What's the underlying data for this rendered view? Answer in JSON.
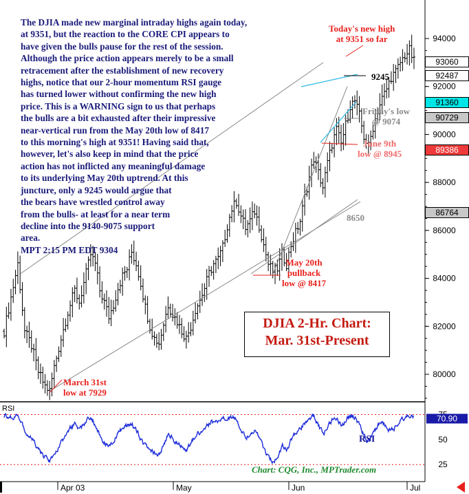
{
  "commentary": "The DJIA made new marginal intraday highs again today,\nat 9351, but the reaction to the CORE CPI appears to\nhave given the bulls pause for the rest of the session.\nAlthough the price action appears merely to be a small\nretracement after the establishment of new recovery\nhighs, notice that our 2-hour momentum RSI gauge\nhas turned lower without confirming the new high\nprice. This is a WARNING sign to us that perhaps\nthe bulls are a bit exhausted after their impressive\nnear-vertical run from the May 20th low of 8417\nto this morning's high at 9351!  Having said that,\nhowever, let's also keep in mind that the price\naction has not inflicted any meaningful damage\nto its underlying May 20th uptrend. At this\njuncture, only a 9245 would argue that\nthe bears have wrestled control away\nfrom the bulls- at least for a near term\ndecline into the 9140-9075 support\narea.\nMPT 2:15 PM EDT 9304",
  "annotations": {
    "today_high": "Today's new high\nat 9351 so far",
    "level_9245": "9245",
    "fridays_low": "Friday's low\n@ 9074",
    "june9_low": "June 9th\nlow @ 8945",
    "level_8650": "8650",
    "may20_low": "May 20th\npullback\nlow @ 8417",
    "march31_low": "March 31st\nlow at 7929"
  },
  "title": "DJIA 2-Hr. Chart:\nMar. 31st-Present",
  "credit": "Chart: CQG, Inc., MPTrader.com",
  "last_values": [
    {
      "value": "93060",
      "bg": "#ffffff",
      "fg": "#000000",
      "price": 9306
    },
    {
      "value": "92487",
      "bg": "#ffffff",
      "fg": "#000000",
      "price": 9248.7
    },
    {
      "value": "91360",
      "bg": "#00e6e6",
      "fg": "#000000",
      "price": 9136
    },
    {
      "value": "90729",
      "bg": "#c8c8c8",
      "fg": "#000000",
      "price": 9072.9
    },
    {
      "value": "89386",
      "bg": "#ee3a3a",
      "fg": "#ffffff",
      "price": 8938.6
    },
    {
      "value": "86764",
      "bg": "#c8c8c8",
      "fg": "#000000",
      "price": 8676.4
    }
  ],
  "rsi_last": {
    "value": "70.90",
    "bg": "#1a1aa8",
    "fg": "#ffffff"
  },
  "colors": {
    "price_bars": "#000000",
    "rsi_line": "#1a2ad8",
    "trendline": "#888888",
    "channel": "#2ab8e8",
    "ref_line": "#e8201c",
    "rsi_guide": "#e8201c"
  },
  "chart_data": {
    "type": "ohlc",
    "title": "DJIA 2-Hr. Chart: Mar. 31st-Present",
    "xlabel": "",
    "ylabel": "",
    "y_ticks": [
      "80000",
      "82000",
      "84000",
      "86000",
      "88000",
      "90000",
      "92000",
      "94000"
    ],
    "ylim": [
      7850,
      9450
    ],
    "x_ticks": [
      "Apr 03",
      "May",
      "Jun",
      "Jul"
    ],
    "series": [
      {
        "name": "",
        "kind": "bar_chart",
        "points": [
          [
            0,
            8180
          ],
          [
            3,
            8320
          ],
          [
            6,
            8460
          ],
          [
            9,
            8180
          ],
          [
            12,
            8120
          ],
          [
            15,
            8010
          ],
          [
            18,
            7950
          ],
          [
            20,
            7930
          ],
          [
            22,
            8030
          ],
          [
            25,
            8150
          ],
          [
            28,
            8260
          ],
          [
            31,
            8350
          ],
          [
            33,
            8300
          ],
          [
            36,
            8420
          ],
          [
            38,
            8500
          ],
          [
            40,
            8460
          ],
          [
            42,
            8350
          ],
          [
            44,
            8300
          ],
          [
            46,
            8240
          ],
          [
            48,
            8290
          ],
          [
            50,
            8360
          ],
          [
            52,
            8410
          ],
          [
            54,
            8440
          ],
          [
            56,
            8510
          ],
          [
            58,
            8460
          ],
          [
            60,
            8380
          ],
          [
            62,
            8280
          ],
          [
            64,
            8200
          ],
          [
            66,
            8150
          ],
          [
            68,
            8130
          ],
          [
            70,
            8210
          ],
          [
            72,
            8290
          ],
          [
            74,
            8250
          ],
          [
            76,
            8220
          ],
          [
            78,
            8180
          ],
          [
            80,
            8150
          ],
          [
            82,
            8200
          ],
          [
            84,
            8270
          ],
          [
            86,
            8310
          ],
          [
            88,
            8360
          ],
          [
            90,
            8420
          ],
          [
            92,
            8460
          ],
          [
            94,
            8480
          ],
          [
            96,
            8530
          ],
          [
            98,
            8620
          ],
          [
            100,
            8690
          ],
          [
            102,
            8720
          ],
          [
            104,
            8660
          ],
          [
            106,
            8610
          ],
          [
            108,
            8640
          ],
          [
            110,
            8680
          ],
          [
            112,
            8620
          ],
          [
            114,
            8540
          ],
          [
            116,
            8460
          ],
          [
            118,
            8430
          ],
          [
            120,
            8440
          ],
          [
            122,
            8500
          ],
          [
            124,
            8460
          ],
          [
            126,
            8540
          ],
          [
            128,
            8590
          ],
          [
            130,
            8640
          ],
          [
            132,
            8740
          ],
          [
            134,
            8820
          ],
          [
            136,
            8900
          ],
          [
            138,
            8840
          ],
          [
            140,
            8780
          ],
          [
            142,
            8880
          ],
          [
            144,
            8960
          ],
          [
            146,
            9020
          ],
          [
            148,
            8960
          ],
          [
            150,
            9040
          ],
          [
            152,
            9120
          ],
          [
            154,
            9140
          ],
          [
            156,
            9080
          ],
          [
            158,
            8990
          ],
          [
            160,
            8950
          ],
          [
            162,
            9030
          ],
          [
            164,
            9100
          ],
          [
            166,
            9150
          ],
          [
            168,
            9190
          ],
          [
            170,
            9240
          ],
          [
            172,
            9260
          ],
          [
            174,
            9300
          ],
          [
            176,
            9330
          ],
          [
            178,
            9351
          ],
          [
            180,
            9304
          ]
        ]
      },
      {
        "name": "RSI",
        "kind": "oscillator",
        "ylim": [
          10,
          85
        ],
        "y_ticks": [
          "25",
          "50",
          "75"
        ],
        "guides": [
          25,
          75
        ],
        "points": [
          [
            0,
            74
          ],
          [
            3,
            72
          ],
          [
            6,
            76
          ],
          [
            9,
            58
          ],
          [
            12,
            50
          ],
          [
            15,
            38
          ],
          [
            18,
            32
          ],
          [
            20,
            28
          ],
          [
            22,
            34
          ],
          [
            25,
            48
          ],
          [
            28,
            60
          ],
          [
            31,
            66
          ],
          [
            33,
            60
          ],
          [
            36,
            70
          ],
          [
            38,
            73
          ],
          [
            40,
            62
          ],
          [
            42,
            52
          ],
          [
            44,
            46
          ],
          [
            46,
            42
          ],
          [
            48,
            50
          ],
          [
            50,
            58
          ],
          [
            52,
            62
          ],
          [
            54,
            64
          ],
          [
            56,
            66
          ],
          [
            58,
            58
          ],
          [
            60,
            50
          ],
          [
            62,
            42
          ],
          [
            64,
            38
          ],
          [
            66,
            36
          ],
          [
            68,
            34
          ],
          [
            70,
            46
          ],
          [
            72,
            56
          ],
          [
            74,
            50
          ],
          [
            76,
            46
          ],
          [
            78,
            42
          ],
          [
            80,
            40
          ],
          [
            82,
            48
          ],
          [
            84,
            56
          ],
          [
            86,
            58
          ],
          [
            88,
            62
          ],
          [
            90,
            66
          ],
          [
            92,
            68
          ],
          [
            94,
            68
          ],
          [
            96,
            70
          ],
          [
            98,
            72
          ],
          [
            100,
            72
          ],
          [
            102,
            70
          ],
          [
            104,
            58
          ],
          [
            106,
            52
          ],
          [
            108,
            56
          ],
          [
            110,
            60
          ],
          [
            112,
            50
          ],
          [
            114,
            40
          ],
          [
            116,
            30
          ],
          [
            118,
            28
          ],
          [
            120,
            32
          ],
          [
            122,
            46
          ],
          [
            124,
            40
          ],
          [
            126,
            52
          ],
          [
            128,
            58
          ],
          [
            130,
            62
          ],
          [
            132,
            68
          ],
          [
            134,
            72
          ],
          [
            136,
            74
          ],
          [
            138,
            62
          ],
          [
            140,
            56
          ],
          [
            142,
            64
          ],
          [
            144,
            70
          ],
          [
            146,
            72
          ],
          [
            148,
            62
          ],
          [
            150,
            70
          ],
          [
            152,
            74
          ],
          [
            154,
            72
          ],
          [
            156,
            62
          ],
          [
            158,
            52
          ],
          [
            160,
            48
          ],
          [
            162,
            58
          ],
          [
            164,
            66
          ],
          [
            166,
            68
          ],
          [
            168,
            60
          ],
          [
            170,
            58
          ],
          [
            172,
            64
          ],
          [
            174,
            68
          ],
          [
            176,
            72
          ],
          [
            178,
            74
          ],
          [
            180,
            71
          ]
        ]
      }
    ],
    "lines": [
      {
        "label": "9245",
        "type": "horizontal",
        "value": 9245
      },
      {
        "label": "8650",
        "type": "trendline"
      }
    ],
    "grid": false,
    "legend": "none"
  }
}
